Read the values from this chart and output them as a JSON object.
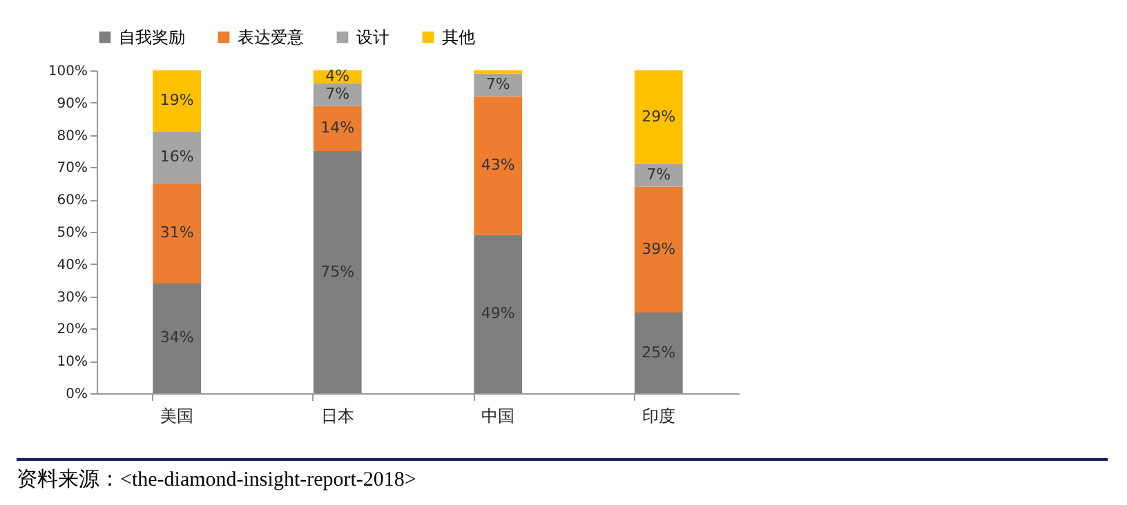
{
  "chart_data": {
    "type": "bar",
    "stacked": true,
    "categories": [
      "美国",
      "日本",
      "中国",
      "印度"
    ],
    "series": [
      {
        "name": "自我奖励",
        "color": "#7f7f7f",
        "values": [
          34,
          75,
          49,
          25
        ],
        "value_labels": [
          "34%",
          "75%",
          "49%",
          "25%"
        ]
      },
      {
        "name": "表达爱意",
        "color": "#ed7d31",
        "values": [
          31,
          14,
          43,
          39
        ],
        "value_labels": [
          "31%",
          "14%",
          "43%",
          "39%"
        ]
      },
      {
        "name": "设计",
        "color": "#a5a5a5",
        "values": [
          16,
          7,
          7,
          7
        ],
        "value_labels": [
          "16%",
          "7%",
          "7%",
          "7%"
        ]
      },
      {
        "name": "其他",
        "color": "#ffc000",
        "values": [
          19,
          4,
          1,
          29
        ],
        "value_labels": [
          "19%",
          "4%",
          null,
          "29%"
        ]
      }
    ],
    "ylim": [
      0,
      100
    ],
    "yticks": [
      {
        "value": 0,
        "label": "0%"
      },
      {
        "value": 10,
        "label": "10%"
      },
      {
        "value": 20,
        "label": "20%"
      },
      {
        "value": 30,
        "label": "30%"
      },
      {
        "value": 40,
        "label": "40%"
      },
      {
        "value": 50,
        "label": "50%"
      },
      {
        "value": 60,
        "label": "60%"
      },
      {
        "value": 70,
        "label": "70%"
      },
      {
        "value": 80,
        "label": "80%"
      },
      {
        "value": 90,
        "label": "90%"
      },
      {
        "value": 100,
        "label": "100%"
      }
    ],
    "grid": false,
    "legend": "top",
    "annotations": [
      "资料来源：<the-diamond-insight-report-2018>"
    ]
  }
}
